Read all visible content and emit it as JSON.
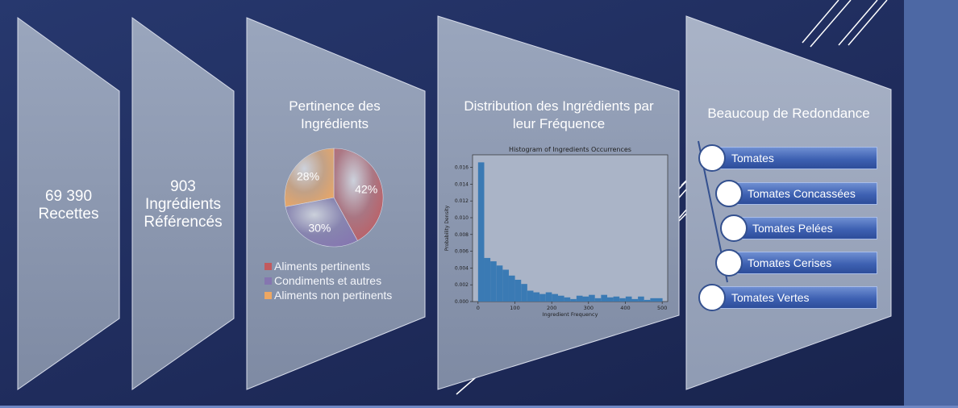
{
  "stats": {
    "recipes": {
      "number": "69 390",
      "label": "Recettes"
    },
    "ingredients": {
      "number": "903",
      "label1": "Ingrédients",
      "label2": "Référencés"
    }
  },
  "pertinence": {
    "title1": "Pertinence des",
    "title2": "Ingrédients",
    "legend": [
      "Aliments pertinents",
      "Condiments et autres",
      "Aliments non pertinents"
    ]
  },
  "distribution": {
    "title1": "Distribution des Ingrédients par",
    "title2": "leur Fréquence"
  },
  "redundancy": {
    "title": "Beaucoup de Redondance",
    "items": [
      "Tomates",
      "Tomates Concassées",
      "Tomates Pelées",
      "Tomates Cerises",
      "Tomates Vertes"
    ]
  },
  "colors": {
    "background": "#22305f",
    "panel": "#8c99b2",
    "slice_pertinent": "#c25a5e",
    "slice_condiments": "#8576b0",
    "slice_non_pertinent": "#eda763",
    "histogram_bar": "#3a7ab4",
    "pill": "#4b6cbd"
  },
  "chart_data": [
    {
      "type": "pie",
      "labels": [
        "Aliments pertinents",
        "Condiments et autres",
        "Aliments non pertinents"
      ],
      "values": [
        42,
        30,
        28
      ],
      "data_labels": [
        "42%",
        "30%",
        "28%"
      ],
      "legend_position": "bottom"
    },
    {
      "type": "bar",
      "title": "Histogram of Ingredients Occurrences",
      "xlabel": "Ingredient Frequency",
      "ylabel": "Probability Density",
      "xlim": [
        -15,
        515
      ],
      "ylim": [
        0,
        0.0175
      ],
      "xticks": [
        0,
        100,
        200,
        300,
        400,
        500
      ],
      "yticks": [
        0.0,
        0.002,
        0.004,
        0.006,
        0.008,
        0.01,
        0.012,
        0.014,
        0.016
      ],
      "ytick_labels": [
        "0.000",
        "0.002",
        "0.004",
        "0.006",
        "0.008",
        "0.010",
        "0.012",
        "0.014",
        "0.016"
      ],
      "bin_width": 16.7,
      "bin_start": 0,
      "values": [
        0.0166,
        0.0052,
        0.0048,
        0.0043,
        0.0038,
        0.0031,
        0.0026,
        0.0021,
        0.0013,
        0.0011,
        0.0009,
        0.0011,
        0.0009,
        0.0007,
        0.0005,
        0.0003,
        0.0007,
        0.0006,
        0.0008,
        0.0004,
        0.0008,
        0.0005,
        0.0006,
        0.0004,
        0.0006,
        0.0003,
        0.0006,
        0.0002,
        0.0004,
        0.0004
      ]
    }
  ]
}
